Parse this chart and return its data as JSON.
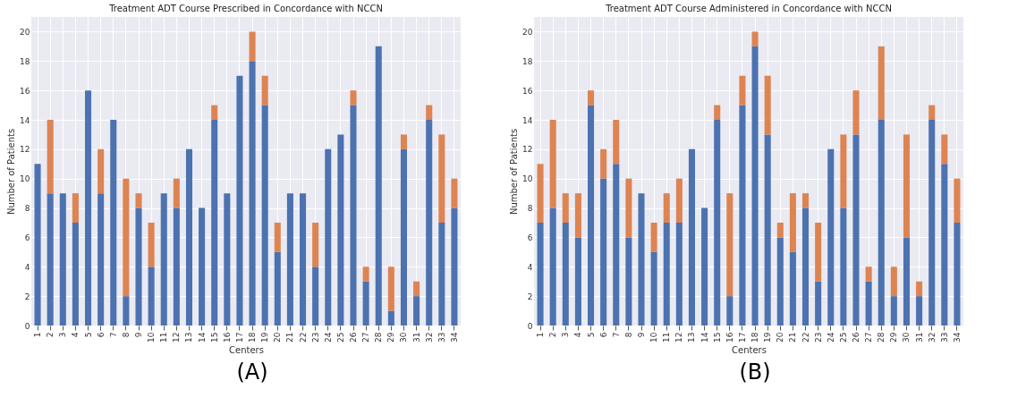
{
  "chart_data": [
    {
      "type": "bar",
      "title": "Treatment ADT Course Prescribed in Concordance with NCCN",
      "xlabel": "Centers",
      "ylabel": "Number of Patients",
      "categories": [
        "1",
        "2",
        "3",
        "4",
        "5",
        "6",
        "7",
        "8",
        "9",
        "10",
        "11",
        "12",
        "13",
        "14",
        "15",
        "16",
        "17",
        "18",
        "19",
        "20",
        "21",
        "22",
        "23",
        "24",
        "25",
        "26",
        "27",
        "28",
        "29",
        "30",
        "31",
        "32",
        "33",
        "34"
      ],
      "series": [
        {
          "color": "#4c72b0",
          "values": [
            11,
            9,
            9,
            7,
            16,
            9,
            14,
            2,
            8,
            4,
            9,
            8,
            12,
            8,
            14,
            9,
            17,
            18,
            15,
            5,
            9,
            9,
            4,
            12,
            13,
            15,
            3,
            19,
            1,
            12,
            2,
            14,
            7,
            8
          ]
        },
        {
          "color": "#dd8452",
          "values": [
            0,
            5,
            0,
            2,
            0,
            3,
            0,
            8,
            1,
            3,
            0,
            2,
            0,
            0,
            1,
            0,
            0,
            2,
            2,
            2,
            0,
            0,
            3,
            0,
            0,
            1,
            1,
            0,
            3,
            1,
            1,
            1,
            6,
            2
          ]
        }
      ],
      "stacked": true,
      "ylim": [
        0,
        21
      ],
      "yticks": [
        0,
        2,
        4,
        6,
        8,
        10,
        12,
        14,
        16,
        18,
        20
      ],
      "grid": true,
      "annotations": [
        "(A)"
      ]
    },
    {
      "type": "bar",
      "title": "Treatment ADT Course Administered in Concordance with NCCN",
      "xlabel": "Centers",
      "ylabel": "Number of Patients",
      "categories": [
        "1",
        "2",
        "3",
        "4",
        "5",
        "6",
        "7",
        "8",
        "9",
        "10",
        "11",
        "12",
        "13",
        "14",
        "15",
        "16",
        "17",
        "18",
        "19",
        "20",
        "21",
        "22",
        "23",
        "24",
        "25",
        "26",
        "27",
        "28",
        "29",
        "30",
        "31",
        "32",
        "33",
        "34"
      ],
      "series": [
        {
          "color": "#4c72b0",
          "values": [
            7,
            8,
            7,
            6,
            15,
            10,
            11,
            6,
            9,
            5,
            7,
            7,
            12,
            8,
            14,
            2,
            15,
            19,
            13,
            6,
            5,
            8,
            3,
            12,
            8,
            13,
            3,
            14,
            2,
            6,
            2,
            14,
            11,
            7
          ]
        },
        {
          "color": "#dd8452",
          "values": [
            4,
            6,
            2,
            3,
            1,
            2,
            3,
            4,
            0,
            2,
            2,
            3,
            0,
            0,
            1,
            7,
            2,
            1,
            4,
            1,
            4,
            1,
            4,
            0,
            5,
            3,
            1,
            5,
            2,
            7,
            1,
            1,
            2,
            3
          ]
        }
      ],
      "stacked": true,
      "ylim": [
        0,
        21
      ],
      "yticks": [
        0,
        2,
        4,
        6,
        8,
        10,
        12,
        14,
        16,
        18,
        20
      ],
      "grid": true,
      "annotations": [
        "(B)"
      ]
    }
  ]
}
